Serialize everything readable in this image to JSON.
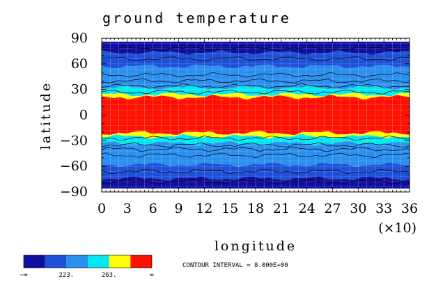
{
  "chart_data": {
    "type": "heatmap",
    "title": "ground temperature",
    "xlabel": "longitude",
    "ylabel": "latitude",
    "x_multiplier": "(×10)",
    "xlim": [
      0,
      36
    ],
    "ylim": [
      -90,
      90
    ],
    "xticks": [
      "0",
      "3",
      "6",
      "9",
      "12",
      "15",
      "18",
      "21",
      "24",
      "27",
      "30",
      "33",
      "36"
    ],
    "yticks": [
      "90",
      "60",
      "30",
      "0",
      "−30",
      "−60",
      "−90"
    ],
    "color_levels": [
      "#1010a0",
      "#1e50d8",
      "#2b8ff0",
      "#00e8f0",
      "#ffff00",
      "#ff1000"
    ],
    "colorbar_labels": [
      "−∞",
      "223.",
      "263.",
      "∞"
    ],
    "contour_interval_text": "CONTOUR INTERVAL = 8.000E+00",
    "bands": [
      {
        "lat_top": 86,
        "lat_bottom": 73,
        "level": 0
      },
      {
        "lat_top": 73,
        "lat_bottom": 57,
        "level": 1
      },
      {
        "lat_top": 57,
        "lat_bottom": 32,
        "level": 2
      },
      {
        "lat_top": 32,
        "lat_bottom": 24,
        "level": 3
      },
      {
        "lat_top": 24,
        "lat_bottom": 21,
        "level": 4
      },
      {
        "lat_top": 21,
        "lat_bottom": -21,
        "level": 5
      },
      {
        "lat_top": -21,
        "lat_bottom": -25,
        "level": 4
      },
      {
        "lat_top": -25,
        "lat_bottom": -33,
        "level": 3
      },
      {
        "lat_top": -33,
        "lat_bottom": -58,
        "level": 2
      },
      {
        "lat_top": -58,
        "lat_bottom": -74,
        "level": 1
      },
      {
        "lat_top": -74,
        "lat_bottom": -86,
        "level": 0
      }
    ]
  }
}
